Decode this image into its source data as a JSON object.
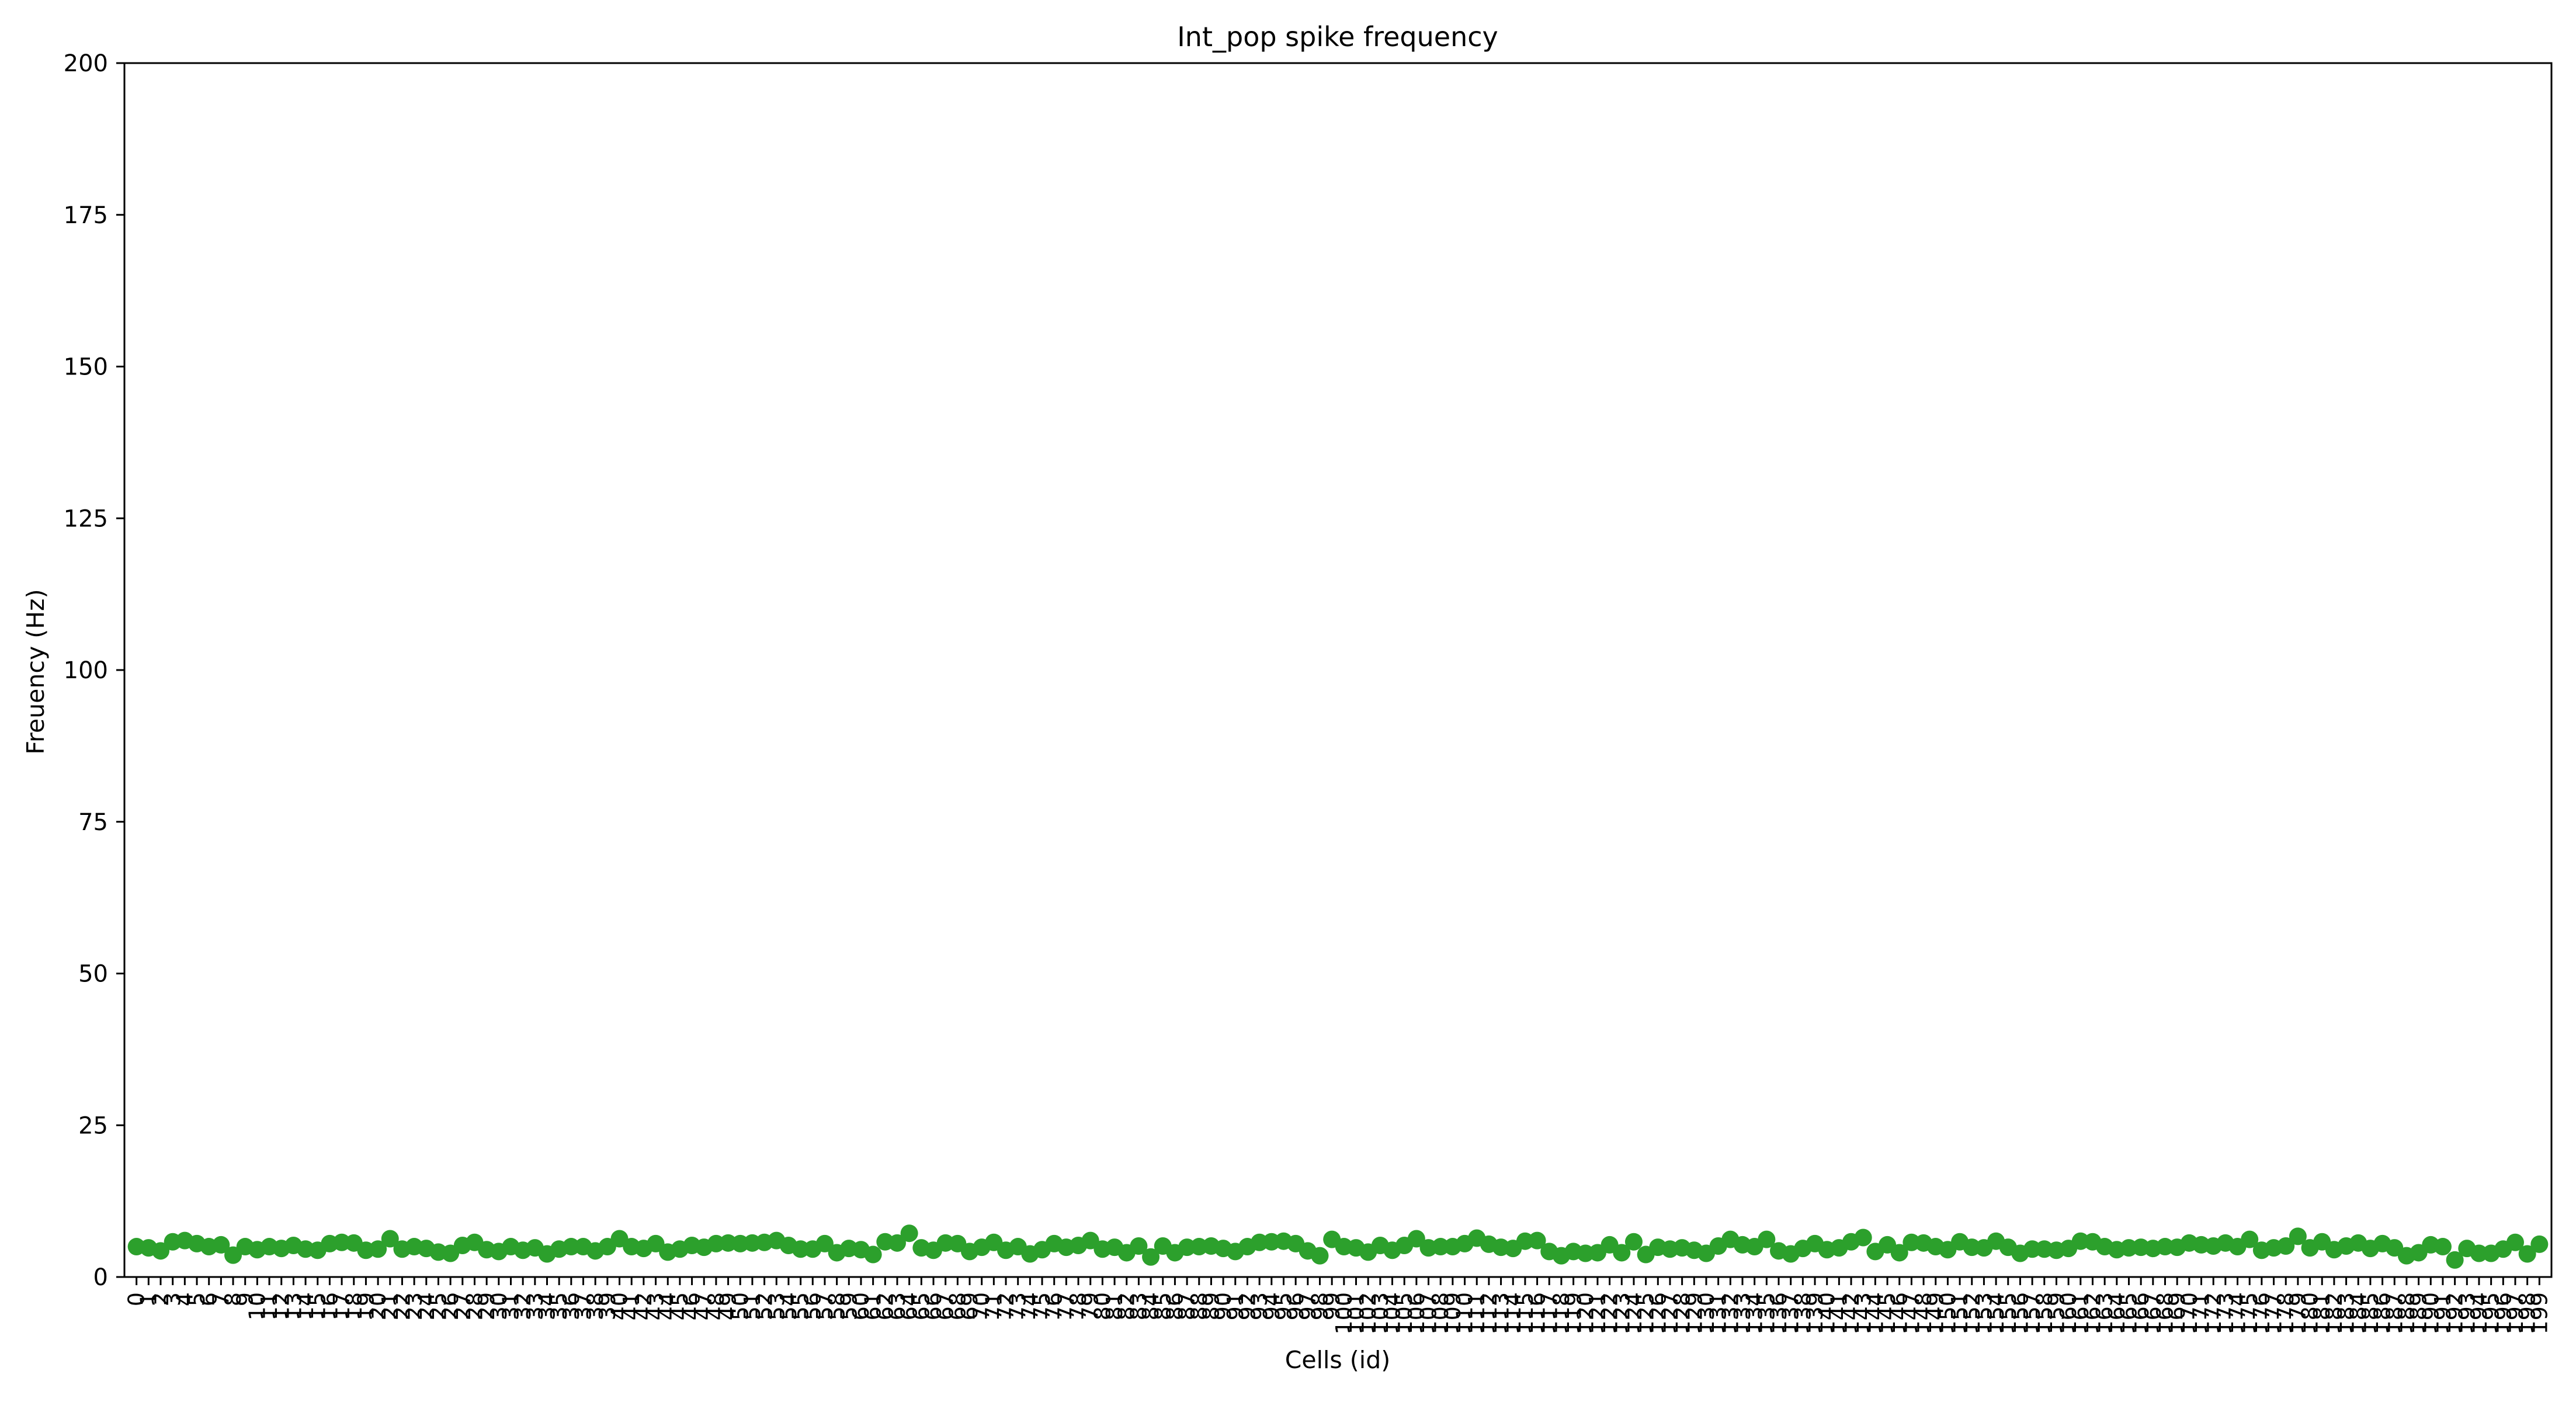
{
  "chart_data": {
    "type": "scatter",
    "title": "Int_pop spike frequency",
    "xlabel": "Cells (id)",
    "ylabel": "Freuency (Hz)",
    "ylim": [
      0,
      200
    ],
    "yticks": [
      0,
      25,
      50,
      75,
      100,
      125,
      150,
      175,
      200
    ],
    "xlim": [
      -1,
      200
    ],
    "grid": false,
    "series": [
      {
        "color": "#2ca02c",
        "x": [
          0,
          1,
          2,
          3,
          4,
          5,
          6,
          7,
          8,
          9,
          10,
          11,
          12,
          13,
          14,
          15,
          16,
          17,
          18,
          19,
          20,
          21,
          22,
          23,
          24,
          25,
          26,
          27,
          28,
          29,
          30,
          31,
          32,
          33,
          34,
          35,
          36,
          37,
          38,
          39,
          40,
          41,
          42,
          43,
          44,
          45,
          46,
          47,
          48,
          49,
          50,
          51,
          52,
          53,
          54,
          55,
          56,
          57,
          58,
          59,
          60,
          61,
          62,
          63,
          64,
          65,
          66,
          67,
          68,
          69,
          70,
          71,
          72,
          73,
          74,
          75,
          76,
          77,
          78,
          79,
          80,
          81,
          82,
          83,
          84,
          85,
          86,
          87,
          88,
          89,
          90,
          91,
          92,
          93,
          94,
          95,
          96,
          97,
          98,
          99,
          100,
          101,
          102,
          103,
          104,
          105,
          106,
          107,
          108,
          109,
          110,
          111,
          112,
          113,
          114,
          115,
          116,
          117,
          118,
          119,
          120,
          121,
          122,
          123,
          124,
          125,
          126,
          127,
          128,
          129,
          130,
          131,
          132,
          133,
          134,
          135,
          136,
          137,
          138,
          139,
          140,
          141,
          142,
          143,
          144,
          145,
          146,
          147,
          148,
          149,
          150,
          151,
          152,
          153,
          154,
          155,
          156,
          157,
          158,
          159,
          160,
          161,
          162,
          163,
          164,
          165,
          166,
          167,
          168,
          169,
          170,
          171,
          172,
          173,
          174,
          175,
          176,
          177,
          178,
          179,
          180,
          181,
          182,
          183,
          184,
          185,
          186,
          187,
          188,
          189,
          190,
          191,
          192,
          193,
          194,
          195,
          196,
          197,
          198,
          199
        ],
        "values": [
          5.0,
          4.8,
          4.3,
          5.8,
          6.0,
          5.5,
          5.0,
          5.3,
          3.6,
          5.0,
          4.5,
          5.0,
          4.7,
          5.2,
          4.6,
          4.4,
          5.5,
          5.7,
          5.6,
          4.4,
          4.6,
          6.3,
          4.6,
          5.0,
          4.7,
          4.1,
          3.9,
          5.2,
          5.7,
          4.5,
          4.2,
          5.0,
          4.4,
          4.8,
          3.8,
          4.6,
          5.0,
          5.0,
          4.3,
          5.0,
          6.3,
          5.0,
          4.7,
          5.5,
          4.1,
          4.6,
          5.2,
          4.9,
          5.5,
          5.6,
          5.5,
          5.6,
          5.7,
          6.0,
          5.2,
          4.6,
          4.6,
          5.5,
          4.0,
          4.7,
          4.5,
          3.7,
          5.8,
          5.6,
          7.2,
          4.8,
          4.4,
          5.6,
          5.5,
          4.2,
          4.9,
          5.7,
          4.4,
          5.0,
          3.8,
          4.5,
          5.5,
          4.9,
          5.2,
          6.0,
          4.6,
          4.9,
          4.0,
          5.1,
          3.3,
          5.1,
          4.0,
          4.9,
          5.0,
          5.1,
          4.7,
          4.2,
          5.0,
          5.7,
          5.8,
          5.9,
          5.5,
          4.3,
          3.5,
          6.2,
          5.0,
          4.8,
          4.1,
          5.2,
          4.4,
          5.2,
          6.3,
          4.8,
          5.0,
          5.0,
          5.5,
          6.4,
          5.4,
          4.9,
          4.7,
          5.9,
          6.0,
          4.2,
          3.5,
          4.2,
          3.9,
          4.0,
          5.3,
          4.0,
          5.8,
          3.7,
          4.9,
          4.6,
          4.8,
          4.4,
          3.9,
          5.1,
          6.2,
          5.3,
          5.0,
          6.2,
          4.3,
          3.8,
          4.7,
          5.5,
          4.5,
          4.8,
          5.8,
          6.5,
          4.2,
          5.3,
          4.0,
          5.7,
          5.6,
          5.0,
          4.5,
          5.8,
          4.9,
          4.8,
          5.9,
          4.9,
          3.9,
          4.6,
          4.6,
          4.4,
          4.7,
          5.9,
          5.8,
          5.0,
          4.5,
          4.8,
          4.9,
          4.7,
          5.0,
          4.9,
          5.6,
          5.3,
          5.1,
          5.6,
          5.0,
          6.2,
          4.4,
          4.8,
          5.1,
          6.7,
          4.8,
          5.8,
          4.5,
          5.1,
          5.6,
          4.7,
          5.5,
          4.8,
          3.5,
          4.0,
          5.3,
          5.0,
          2.8,
          4.7,
          3.9,
          3.9,
          4.6,
          5.7,
          3.8,
          5.4
        ]
      }
    ]
  }
}
